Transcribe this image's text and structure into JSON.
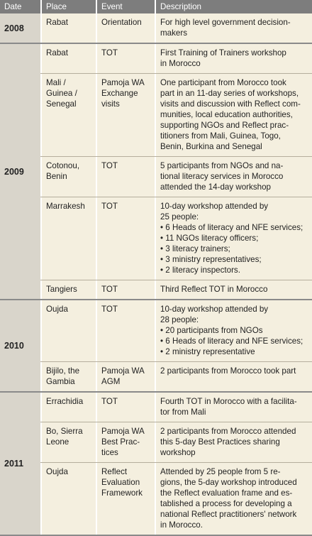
{
  "header": [
    "Date",
    "Place",
    "Event",
    "Description"
  ],
  "groups": [
    {
      "year": "2008",
      "rows": [
        {
          "place": [
            "Rabat"
          ],
          "event": [
            "Orientation"
          ],
          "description": [
            "For high level government decision-",
            "makers"
          ]
        }
      ]
    },
    {
      "year": "2009",
      "rows": [
        {
          "place": [
            "Rabat"
          ],
          "event": [
            "TOT"
          ],
          "description": [
            "First Training of Trainers workshop",
            "in Morocco"
          ]
        },
        {
          "place": [
            "Mali /",
            "Guinea /",
            "Senegal"
          ],
          "event": [
            "Pamoja WA",
            "Exchange",
            "visits"
          ],
          "description": [
            "One participant from Morocco took",
            "part in an 11-day series of workshops,",
            "visits and discussion with Reflect com-",
            "munities, local education authorities,",
            "supporting NGOs and Reflect prac-",
            "titioners from Mali, Guinea, Togo,",
            "Benin, Burkina and Senegal"
          ]
        },
        {
          "place": [
            "Cotonou,",
            "Benin"
          ],
          "event": [
            "TOT"
          ],
          "description": [
            "5 participants from NGOs and na-",
            "tional literacy services in Morocco",
            "attended the 14-day workshop"
          ]
        },
        {
          "place": [
            "Marrakesh"
          ],
          "event": [
            "TOT"
          ],
          "description": [
            "10-day workshop attended by",
            "25 people:",
            "• 6 Heads of literacy and NFE services;",
            "• 11 NGOs literacy officers;",
            "• 3 literacy trainers;",
            "• 3 ministry representatives;",
            "• 2 literacy inspectors."
          ]
        },
        {
          "place": [
            "Tangiers"
          ],
          "event": [
            "TOT"
          ],
          "description": [
            "Third Reflect TOT in Morocco"
          ]
        }
      ]
    },
    {
      "year": "2010",
      "rows": [
        {
          "place": [
            "Oujda"
          ],
          "event": [
            "TOT"
          ],
          "description": [
            "10-day workshop attended by",
            "28 people:",
            "• 20 participants from NGOs",
            "• 6 Heads of literacy and NFE services;",
            "• 2 ministry representative"
          ]
        },
        {
          "place": [
            "Bijilo, the",
            "Gambia"
          ],
          "event": [
            "Pamoja WA",
            "AGM"
          ],
          "description": [
            "2 participants from Morocco took part"
          ]
        }
      ]
    },
    {
      "year": "2011",
      "rows": [
        {
          "place": [
            "Errachidia"
          ],
          "event": [
            "TOT"
          ],
          "description": [
            "Fourth TOT in Morocco with a facilita-",
            "tor from Mali"
          ]
        },
        {
          "place": [
            "Bo, Sierra",
            "Leone"
          ],
          "event": [
            "Pamoja WA",
            "Best Prac-",
            "tices"
          ],
          "description": [
            "2 participants from Morocco attended",
            "this 5-day Best Practices sharing",
            "workshop"
          ]
        },
        {
          "place": [
            "Oujda"
          ],
          "event": [
            "Reflect",
            "Evaluation",
            "Framework"
          ],
          "description": [
            "Attended by 25 people from 5 re-",
            "gions, the 5-day workshop introduced",
            "the Reflect evaluation frame and es-",
            "tablished a process for developing a",
            "national Reflect practitioners' network",
            "in Morocco."
          ]
        }
      ]
    }
  ]
}
